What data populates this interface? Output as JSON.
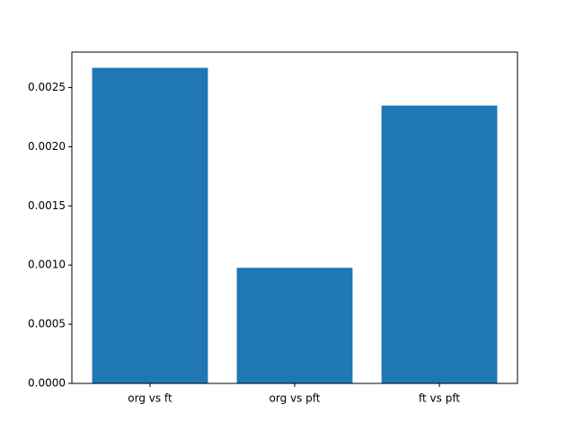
{
  "chart_data": {
    "type": "bar",
    "categories": [
      "org vs ft",
      "org vs pft",
      "ft vs pft"
    ],
    "values": [
      0.002667,
      0.000977,
      0.002348
    ],
    "color": "#1f77b4",
    "ylim": [
      0,
      0.0028
    ],
    "yticks": [
      {
        "value": 0,
        "label": "0.0000"
      },
      {
        "value": 0.0005,
        "label": "0.0005"
      },
      {
        "value": 0.001,
        "label": "0.0010"
      },
      {
        "value": 0.0015,
        "label": "0.0015"
      },
      {
        "value": 0.002,
        "label": "0.0020"
      },
      {
        "value": 0.0025,
        "label": "0.0025"
      }
    ],
    "grid": false
  }
}
